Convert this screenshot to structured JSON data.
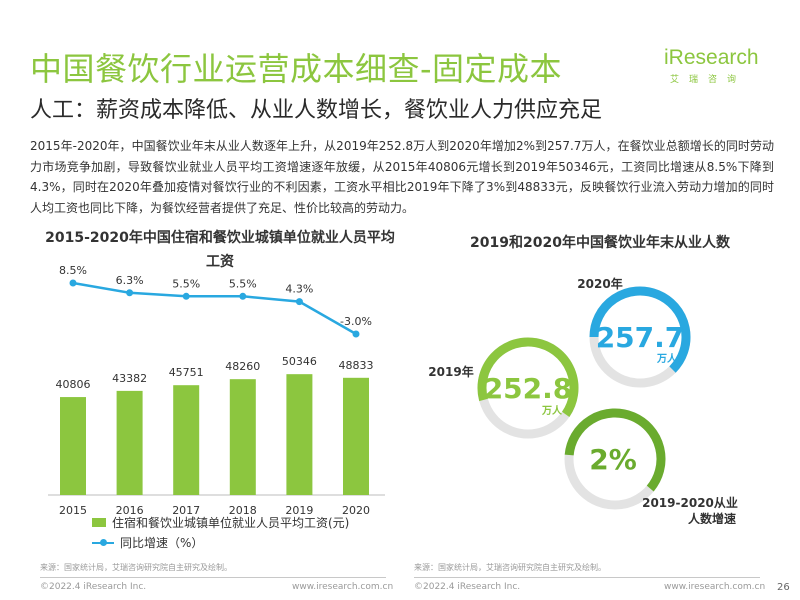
{
  "header": {
    "title": "中国餐饮行业运营成本细查-固定成本",
    "subtitle": "人工：薪资成本降低、从业人数增长，餐饮业人力供应充足",
    "logo_text": "iResearch",
    "logo_cn": "艾瑞咨询"
  },
  "intro": "2015年-2020年，中国餐饮业年末从业人数逐年上升，从2019年252.8万人到2020年增加2%到257.7万人，在餐饮业总额增长的同时劳动力市场竞争加剧，导致餐饮业就业人员平均工资增速逐年放缓，从2015年40806元增长到2019年50346元，工资同比增速从8.5%下降到4.3%，同时在2020年叠加疫情对餐饮行业的不利因素，工资水平相比2019年下降了3%到48833元，反映餐饮行业流入劳动力增加的同时人均工资也同比下降，为餐饮经营者提供了充足、性价比较高的劳动力。",
  "left_title": "2015-2020年中国住宿和餐饮业城镇单位就业人员平均工资",
  "right_title": "2019和2020年中国餐饮业年末从业人数",
  "legend": {
    "bar": "住宿和餐饮业城镇单位就业人员平均工资(元)",
    "line": "同比增速（%）"
  },
  "right_labels": {
    "year_2020": "2020年",
    "year_2019": "2019年",
    "growth_label_1": "2019-2020从业",
    "growth_label_2": "人数增速",
    "unit": "万人"
  },
  "colors": {
    "green": "#8cc63f",
    "blue": "#29a8e0",
    "dark_green": "#6aab2e",
    "track": "#e3e3e3"
  },
  "chart_data": [
    {
      "type": "bar",
      "categories": [
        "2015",
        "2016",
        "2017",
        "2018",
        "2019",
        "2020"
      ],
      "series": [
        {
          "name": "住宿和餐饮业城镇单位就业人员平均工资(元)",
          "type": "bar",
          "values": [
            40806,
            43382,
            45751,
            48260,
            50346,
            48833
          ],
          "value_labels": [
            "40806",
            "43382",
            "45751",
            "48260",
            "50346",
            "48833"
          ]
        },
        {
          "name": "同比增速（%）",
          "type": "line",
          "values": [
            8.5,
            6.3,
            5.5,
            5.5,
            4.3,
            -3.0
          ],
          "value_labels": [
            "8.5%",
            "6.3%",
            "5.5%",
            "5.5%",
            "4.3%",
            "-3.0%"
          ]
        }
      ],
      "title": "2015-2020年中国住宿和餐饮业城镇单位就业人员平均工资",
      "xlabel": "",
      "ylabel": ""
    },
    {
      "type": "pie",
      "categories": [
        "2019年",
        "2020年",
        "2019-2020从业人数增速"
      ],
      "values": [
        252.8,
        257.7,
        2
      ],
      "value_labels": [
        "252.8",
        "257.7",
        "2%"
      ],
      "units": [
        "万人",
        "万人",
        ""
      ],
      "title": "2019和2020年中国餐饮业年末从业人数"
    }
  ],
  "source_left": "来源：国家统计局，艾瑞咨询研究院自主研究及绘制。",
  "source_right": "来源：国家统计局，艾瑞咨询研究院自主研究及绘制。",
  "footer": {
    "copyright_left": "©2022.4 iResearch Inc.",
    "url_left": "www.iresearch.com.cn",
    "copyright_right": "©2022.4 iResearch Inc.",
    "url_right": "www.iresearch.com.cn",
    "page_number": "26"
  }
}
